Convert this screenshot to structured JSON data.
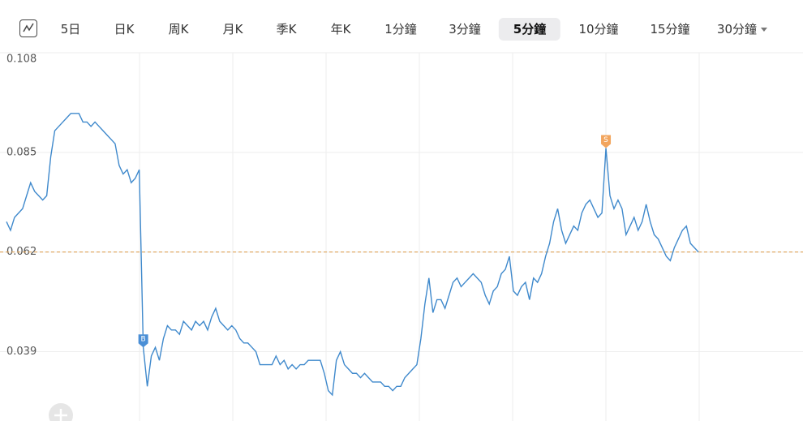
{
  "tabs": [
    "5日",
    "日K",
    "周K",
    "月K",
    "季K",
    "年K",
    "1分鐘",
    "3分鐘",
    "5分鐘",
    "10分鐘",
    "15分鐘",
    "30分鐘"
  ],
  "selected_tab": 8,
  "dropdown_tab": 11,
  "chart_data": {
    "type": "line",
    "series": [
      {
        "color": "#3f89cc",
        "values": [
          0.069,
          0.067,
          0.07,
          0.071,
          0.072,
          0.075,
          0.078,
          0.076,
          0.075,
          0.074,
          0.075,
          0.084,
          0.09,
          0.091,
          0.092,
          0.093,
          0.094,
          0.094,
          0.094,
          0.092,
          0.092,
          0.091,
          0.092,
          0.091,
          0.09,
          0.089,
          0.088,
          0.087,
          0.082,
          0.08,
          0.081,
          0.078,
          0.079,
          0.081,
          0.04,
          0.031,
          0.038,
          0.04,
          0.037,
          0.042,
          0.045,
          0.044,
          0.044,
          0.043,
          0.046,
          0.045,
          0.044,
          0.046,
          0.045,
          0.046,
          0.044,
          0.047,
          0.049,
          0.046,
          0.045,
          0.044,
          0.045,
          0.044,
          0.042,
          0.041,
          0.041,
          0.04,
          0.039,
          0.036,
          0.036,
          0.036,
          0.036,
          0.038,
          0.036,
          0.037,
          0.035,
          0.036,
          0.035,
          0.036,
          0.036,
          0.037,
          0.037,
          0.037,
          0.037,
          0.034,
          0.03,
          0.029,
          0.037,
          0.039,
          0.036,
          0.035,
          0.034,
          0.034,
          0.033,
          0.034,
          0.033,
          0.032,
          0.032,
          0.032,
          0.031,
          0.031,
          0.03,
          0.031,
          0.031,
          0.033,
          0.034,
          0.035,
          0.036,
          0.042,
          0.05,
          0.056,
          0.048,
          0.051,
          0.051,
          0.049,
          0.052,
          0.055,
          0.056,
          0.054,
          0.055,
          0.056,
          0.057,
          0.056,
          0.055,
          0.052,
          0.05,
          0.053,
          0.054,
          0.057,
          0.058,
          0.061,
          0.053,
          0.052,
          0.054,
          0.055,
          0.051,
          0.056,
          0.055,
          0.057,
          0.061,
          0.064,
          0.069,
          0.072,
          0.067,
          0.064,
          0.066,
          0.068,
          0.067,
          0.071,
          0.073,
          0.074,
          0.072,
          0.07,
          0.071,
          0.086,
          0.075,
          0.072,
          0.074,
          0.072,
          0.066,
          0.068,
          0.07,
          0.067,
          0.069,
          0.073,
          0.069,
          0.066,
          0.065,
          0.063,
          0.061,
          0.06,
          0.063,
          0.065,
          0.067,
          0.068,
          0.064,
          0.063,
          0.062
        ]
      }
    ],
    "ylim": [
      0.023,
      0.108
    ],
    "yticks": [
      0.108,
      0.085,
      0.062,
      0.039
    ],
    "grid": true,
    "reference_line": {
      "value": 0.062,
      "color": "#e0a458"
    },
    "annotations": [
      {
        "label": "B",
        "x": 34,
        "color": "#4a8fd6"
      },
      {
        "label": "S",
        "x": 149,
        "color": "#f2a55e"
      }
    ]
  }
}
